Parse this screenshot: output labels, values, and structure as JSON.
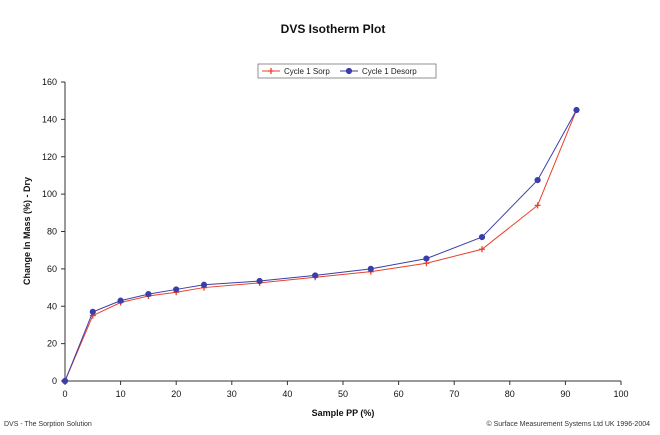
{
  "chart_data": {
    "type": "line",
    "title": "DVS Isotherm Plot",
    "xlabel": "Sample PP (%)",
    "ylabel": "Change In Mass (%) - Dry",
    "xlim": [
      0,
      100
    ],
    "ylim": [
      0,
      160
    ],
    "x_ticks": [
      0,
      10,
      20,
      30,
      40,
      50,
      60,
      70,
      80,
      90,
      100
    ],
    "y_ticks": [
      0,
      20,
      40,
      60,
      80,
      100,
      120,
      140,
      160
    ],
    "grid": false,
    "legend_position": "top-center",
    "series": [
      {
        "name": "Cycle 1 Sorp",
        "color": "#e8412a",
        "marker": "plus",
        "points": [
          [
            0,
            0
          ],
          [
            5,
            35
          ],
          [
            10,
            42
          ],
          [
            15,
            45.5
          ],
          [
            20,
            47.5
          ],
          [
            25,
            50
          ],
          [
            35,
            52.5
          ],
          [
            45,
            55.5
          ],
          [
            55,
            58.5
          ],
          [
            65,
            63
          ],
          [
            75,
            70.5
          ],
          [
            85,
            94
          ],
          [
            92,
            145
          ]
        ]
      },
      {
        "name": "Cycle 1 Desorp",
        "color": "#3a3fa8",
        "marker": "circle",
        "points": [
          [
            0,
            0
          ],
          [
            5,
            37
          ],
          [
            10,
            43
          ],
          [
            15,
            46.5
          ],
          [
            20,
            49
          ],
          [
            25,
            51.5
          ],
          [
            35,
            53.5
          ],
          [
            45,
            56.5
          ],
          [
            55,
            60
          ],
          [
            65,
            65.5
          ],
          [
            75,
            77
          ],
          [
            85,
            107.5
          ],
          [
            92,
            145
          ]
        ]
      }
    ]
  },
  "footer": {
    "left": "DVS - The Sorption Solution",
    "right": "© Surface Measurement Systems Ltd UK 1996-2004"
  }
}
